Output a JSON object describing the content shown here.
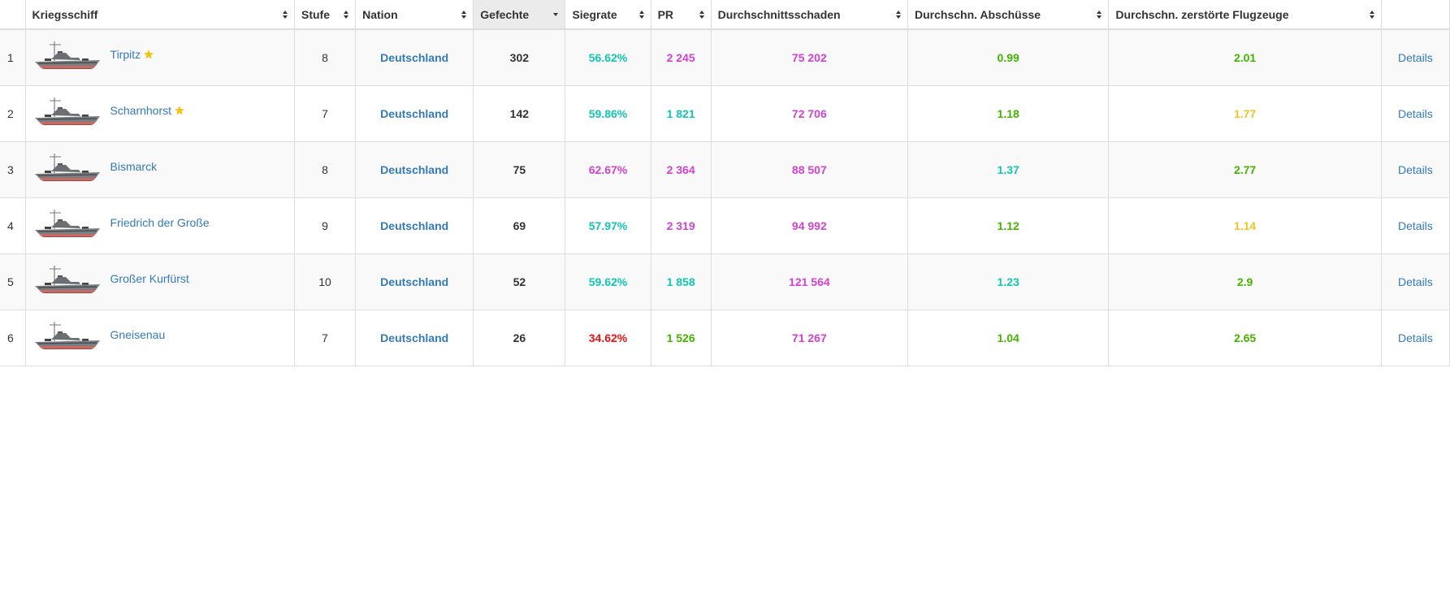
{
  "colors": {
    "teal": "#12c6b1",
    "purple": "#d042d0",
    "green": "#44b300",
    "yellow": "#f3c321",
    "red": "#ee1111",
    "link": "#337ab7"
  },
  "table": {
    "headers": {
      "ship": "Kriegsschiff",
      "tier": "Stufe",
      "nation": "Nation",
      "battles": "Gefechte",
      "winrate": "Siegrate",
      "pr": "PR",
      "damage": "Durchschnittsschaden",
      "kills": "Durchschn. Abschüsse",
      "planes": "Durchschn. zerstörte Flugzeuge"
    },
    "sorted_column": "battles",
    "rows": [
      {
        "index": "1",
        "ship": "Tirpitz",
        "star": true,
        "ship_icon": "battleship-icon",
        "tier": "8",
        "nation": "Deutschland",
        "battles": "302",
        "winrate": "56.62%",
        "winrate_color": "teal",
        "pr": "2 245",
        "pr_color": "purple",
        "damage": "75 202",
        "damage_color": "purple",
        "kills": "0.99",
        "kills_color": "green",
        "planes": "2.01",
        "planes_color": "green",
        "details": "Details"
      },
      {
        "index": "2",
        "ship": "Scharnhorst",
        "star": true,
        "ship_icon": "battleship-icon",
        "tier": "7",
        "nation": "Deutschland",
        "battles": "142",
        "winrate": "59.86%",
        "winrate_color": "teal",
        "pr": "1 821",
        "pr_color": "teal",
        "damage": "72 706",
        "damage_color": "purple",
        "kills": "1.18",
        "kills_color": "green",
        "planes": "1.77",
        "planes_color": "yellow",
        "details": "Details"
      },
      {
        "index": "3",
        "ship": "Bismarck",
        "star": false,
        "ship_icon": "battleship-icon",
        "tier": "8",
        "nation": "Deutschland",
        "battles": "75",
        "winrate": "62.67%",
        "winrate_color": "purple",
        "pr": "2 364",
        "pr_color": "purple",
        "damage": "88 507",
        "damage_color": "purple",
        "kills": "1.37",
        "kills_color": "teal",
        "planes": "2.77",
        "planes_color": "green",
        "details": "Details"
      },
      {
        "index": "4",
        "ship": "Friedrich der Große",
        "star": false,
        "ship_icon": "battleship-icon",
        "tier": "9",
        "nation": "Deutschland",
        "battles": "69",
        "winrate": "57.97%",
        "winrate_color": "teal",
        "pr": "2 319",
        "pr_color": "purple",
        "damage": "94 992",
        "damage_color": "purple",
        "kills": "1.12",
        "kills_color": "green",
        "planes": "1.14",
        "planes_color": "yellow",
        "details": "Details"
      },
      {
        "index": "5",
        "ship": "Großer Kurfürst",
        "star": false,
        "ship_icon": "battleship-icon",
        "tier": "10",
        "nation": "Deutschland",
        "battles": "52",
        "winrate": "59.62%",
        "winrate_color": "teal",
        "pr": "1 858",
        "pr_color": "teal",
        "damage": "121 564",
        "damage_color": "purple",
        "kills": "1.23",
        "kills_color": "teal",
        "planes": "2.9",
        "planes_color": "green",
        "details": "Details"
      },
      {
        "index": "6",
        "ship": "Gneisenau",
        "star": false,
        "ship_icon": "battleship-icon",
        "tier": "7",
        "nation": "Deutschland",
        "battles": "26",
        "winrate": "34.62%",
        "winrate_color": "red",
        "pr": "1 526",
        "pr_color": "green",
        "damage": "71 267",
        "damage_color": "purple",
        "kills": "1.04",
        "kills_color": "green",
        "planes": "2.65",
        "planes_color": "green",
        "details": "Details"
      }
    ]
  }
}
